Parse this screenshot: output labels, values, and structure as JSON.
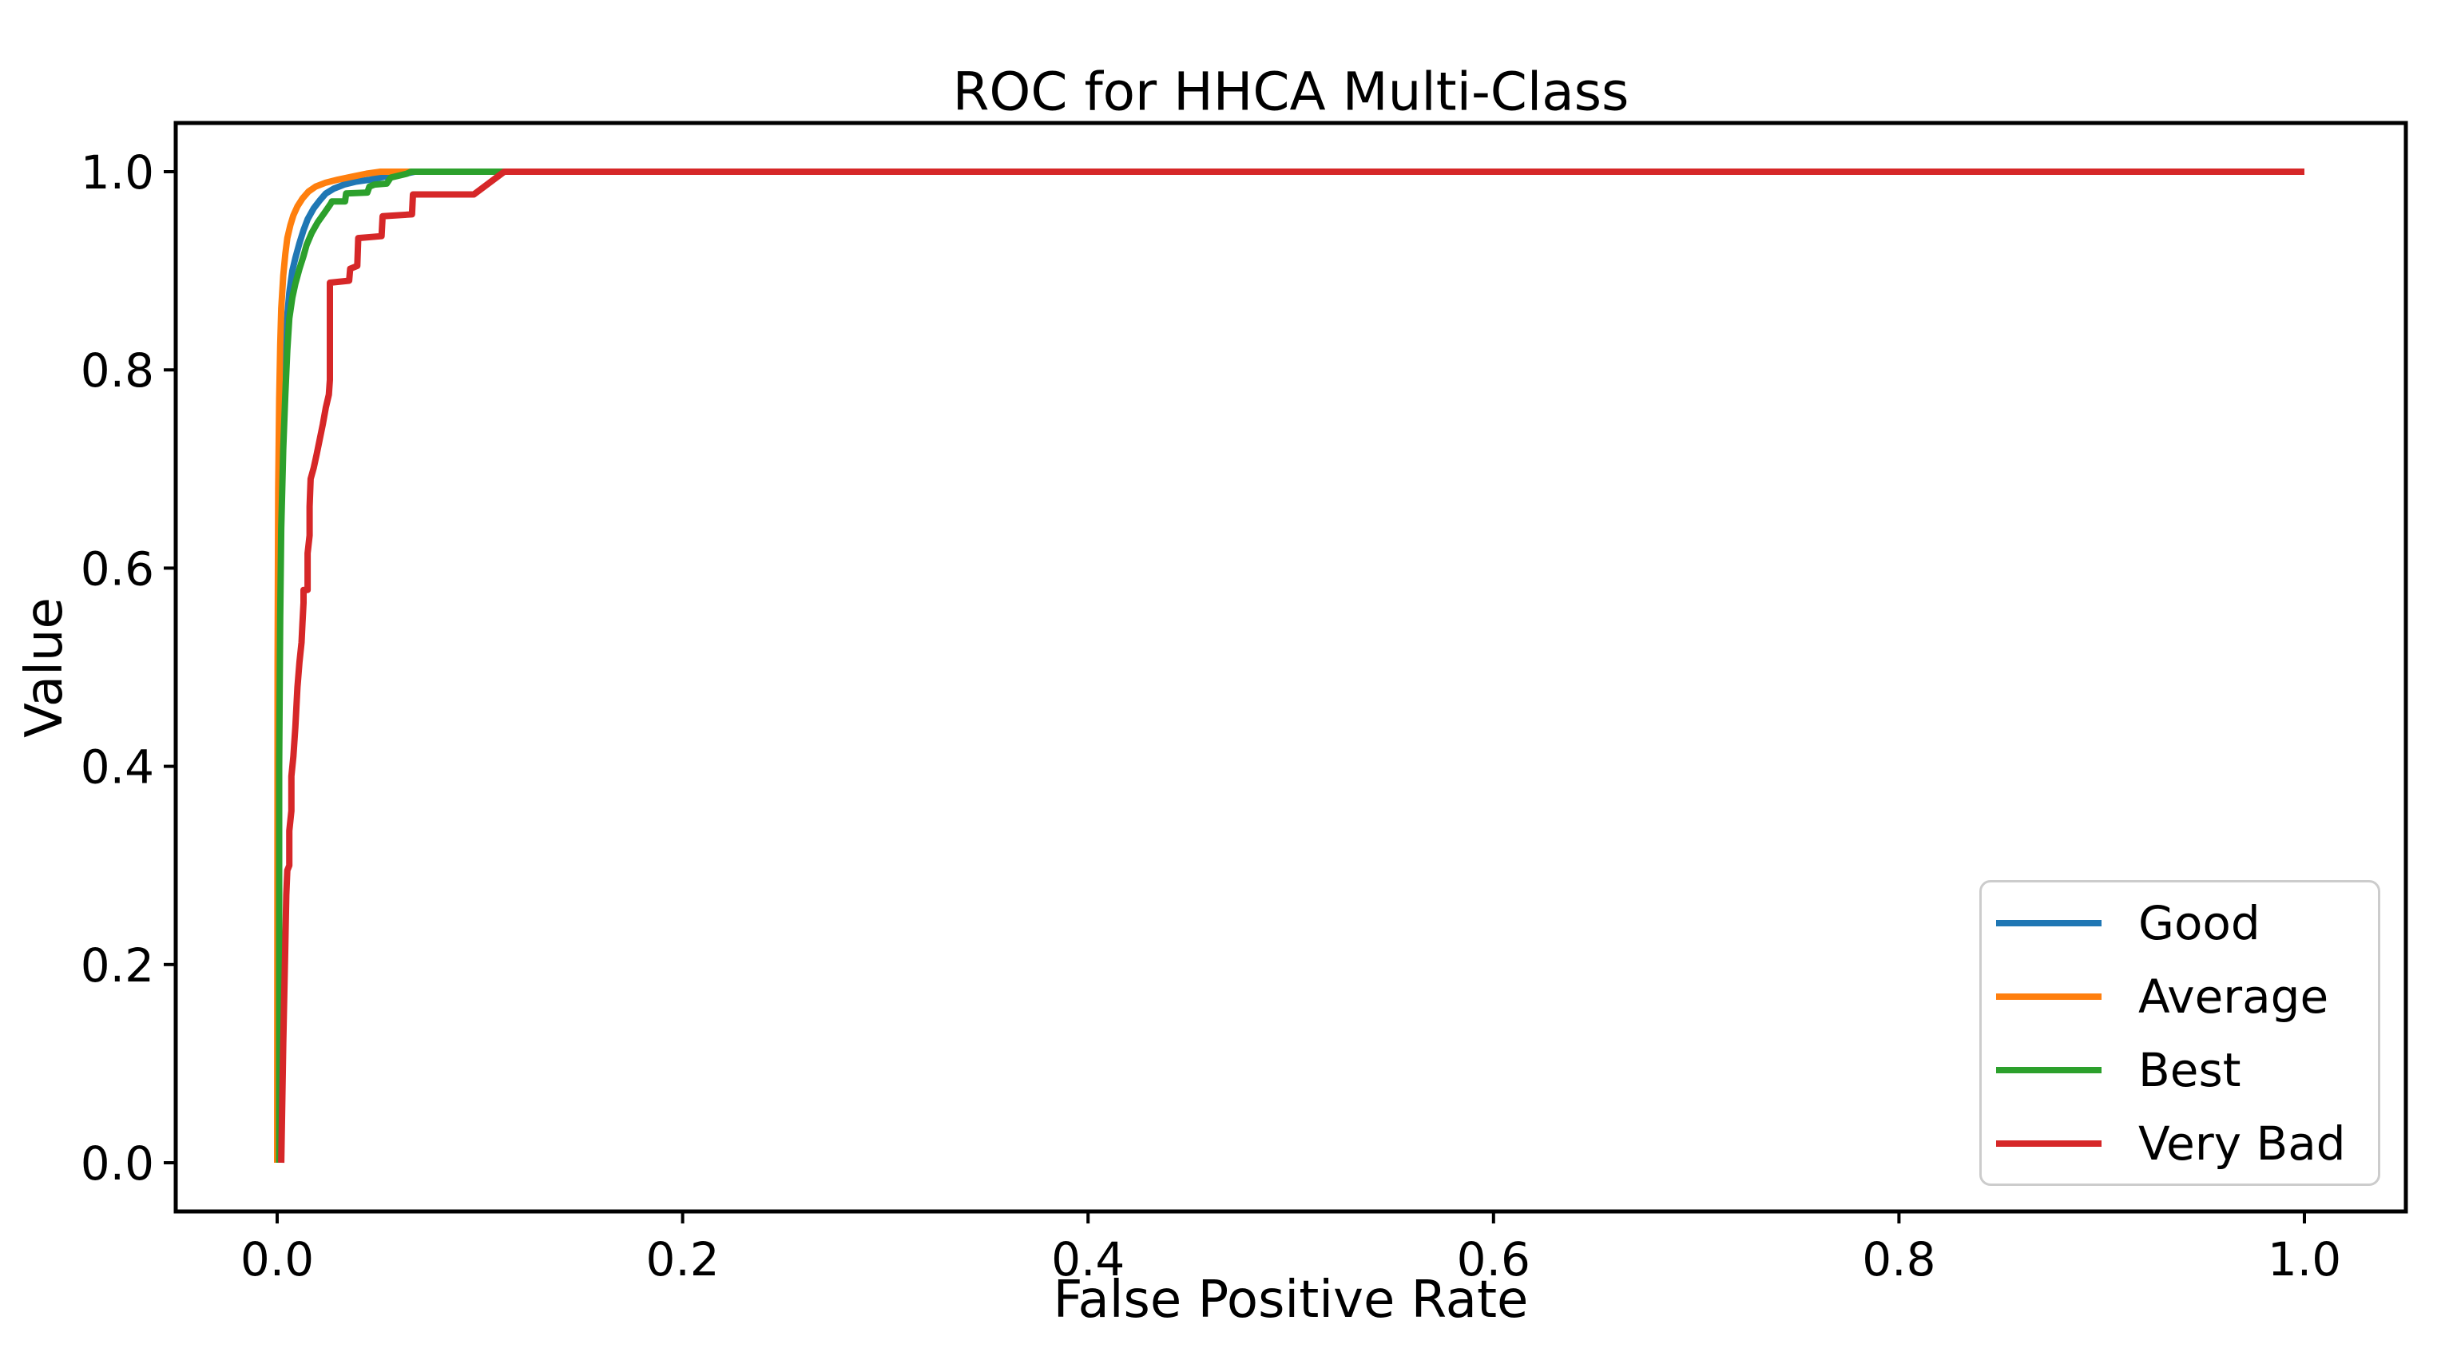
{
  "chart_data": {
    "type": "line",
    "title": "ROC for HHCA Multi-Class",
    "xlabel": "False Positive Rate",
    "ylabel": "Value",
    "xlim": [
      0.0,
      1.0
    ],
    "ylim": [
      0.0,
      1.0
    ],
    "x_ticks": [
      "0.0",
      "0.2",
      "0.4",
      "0.6",
      "0.8",
      "1.0"
    ],
    "y_ticks": [
      "0.0",
      "0.2",
      "0.4",
      "0.6",
      "0.8",
      "1.0"
    ],
    "grid": false,
    "legend_position": "lower right",
    "axis_color": "#000000",
    "background_color": "#ffffff",
    "series": [
      {
        "name": "Good",
        "color": "#1f77b4",
        "points": [
          [
            0.0005,
            0
          ],
          [
            0.0005,
            0.45
          ],
          [
            0.001,
            0.6
          ],
          [
            0.0015,
            0.68
          ],
          [
            0.002,
            0.72
          ],
          [
            0.003,
            0.78
          ],
          [
            0.004,
            0.82
          ],
          [
            0.005,
            0.855
          ],
          [
            0.006,
            0.878
          ],
          [
            0.0075,
            0.9
          ],
          [
            0.009,
            0.913
          ],
          [
            0.011,
            0.928
          ],
          [
            0.013,
            0.941
          ],
          [
            0.015,
            0.952
          ],
          [
            0.018,
            0.963
          ],
          [
            0.021,
            0.971
          ],
          [
            0.024,
            0.978
          ],
          [
            0.028,
            0.983
          ],
          [
            0.033,
            0.987
          ],
          [
            0.039,
            0.99
          ],
          [
            0.046,
            0.992
          ],
          [
            0.053,
            0.995
          ],
          [
            0.061,
            0.997
          ],
          [
            0.068,
            1
          ],
          [
            1,
            1
          ]
        ]
      },
      {
        "name": "Average",
        "color": "#ff7f0e",
        "points": [
          [
            0,
            0
          ],
          [
            0.0002,
            0.5
          ],
          [
            0.0005,
            0.68
          ],
          [
            0.001,
            0.77
          ],
          [
            0.0015,
            0.825
          ],
          [
            0.002,
            0.862
          ],
          [
            0.003,
            0.895
          ],
          [
            0.004,
            0.917
          ],
          [
            0.005,
            0.933
          ],
          [
            0.0065,
            0.946
          ],
          [
            0.008,
            0.956
          ],
          [
            0.01,
            0.965
          ],
          [
            0.0125,
            0.973
          ],
          [
            0.0155,
            0.98
          ],
          [
            0.019,
            0.985
          ],
          [
            0.024,
            0.989
          ],
          [
            0.03,
            0.992
          ],
          [
            0.037,
            0.995
          ],
          [
            0.044,
            0.998
          ],
          [
            0.051,
            1
          ],
          [
            1,
            1
          ]
        ]
      },
      {
        "name": "Best",
        "color": "#2ca02c",
        "points": [
          [
            0.001,
            0
          ],
          [
            0.001,
            0.4
          ],
          [
            0.0015,
            0.55
          ],
          [
            0.002,
            0.64
          ],
          [
            0.003,
            0.72
          ],
          [
            0.004,
            0.775
          ],
          [
            0.005,
            0.82
          ],
          [
            0.006,
            0.852
          ],
          [
            0.0075,
            0.873
          ],
          [
            0.009,
            0.887
          ],
          [
            0.011,
            0.902
          ],
          [
            0.013,
            0.915
          ],
          [
            0.0145,
            0.926
          ],
          [
            0.017,
            0.938
          ],
          [
            0.02,
            0.949
          ],
          [
            0.0235,
            0.959
          ],
          [
            0.0265,
            0.968
          ],
          [
            0.027,
            0.97
          ],
          [
            0.0335,
            0.97
          ],
          [
            0.034,
            0.978
          ],
          [
            0.0445,
            0.979
          ],
          [
            0.0455,
            0.985
          ],
          [
            0.048,
            0.987
          ],
          [
            0.054,
            0.988
          ],
          [
            0.056,
            0.994
          ],
          [
            0.064,
            0.998
          ],
          [
            0.066,
            1
          ],
          [
            1,
            1
          ]
        ]
      },
      {
        "name": "Very Bad",
        "color": "#d62728",
        "points": [
          [
            0.002,
            0
          ],
          [
            0.003,
            0.12
          ],
          [
            0.004,
            0.22
          ],
          [
            0.0045,
            0.27
          ],
          [
            0.005,
            0.295
          ],
          [
            0.006,
            0.3
          ],
          [
            0.006,
            0.335
          ],
          [
            0.007,
            0.355
          ],
          [
            0.007,
            0.39
          ],
          [
            0.008,
            0.41
          ],
          [
            0.009,
            0.44
          ],
          [
            0.0095,
            0.46
          ],
          [
            0.01,
            0.48
          ],
          [
            0.011,
            0.505
          ],
          [
            0.012,
            0.525
          ],
          [
            0.0125,
            0.545
          ],
          [
            0.013,
            0.565
          ],
          [
            0.013,
            0.578
          ],
          [
            0.015,
            0.578
          ],
          [
            0.015,
            0.615
          ],
          [
            0.016,
            0.633
          ],
          [
            0.016,
            0.662
          ],
          [
            0.0165,
            0.69
          ],
          [
            0.018,
            0.701
          ],
          [
            0.0195,
            0.715
          ],
          [
            0.021,
            0.73
          ],
          [
            0.0225,
            0.745
          ],
          [
            0.024,
            0.762
          ],
          [
            0.0255,
            0.775
          ],
          [
            0.026,
            0.79
          ],
          [
            0.026,
            0.888
          ],
          [
            0.0355,
            0.89
          ],
          [
            0.036,
            0.902
          ],
          [
            0.0395,
            0.905
          ],
          [
            0.04,
            0.933
          ],
          [
            0.0515,
            0.935
          ],
          [
            0.052,
            0.955
          ],
          [
            0.0665,
            0.957
          ],
          [
            0.067,
            0.977
          ],
          [
            0.097,
            0.977
          ],
          [
            0.112,
            1
          ],
          [
            1,
            1
          ]
        ]
      }
    ]
  }
}
